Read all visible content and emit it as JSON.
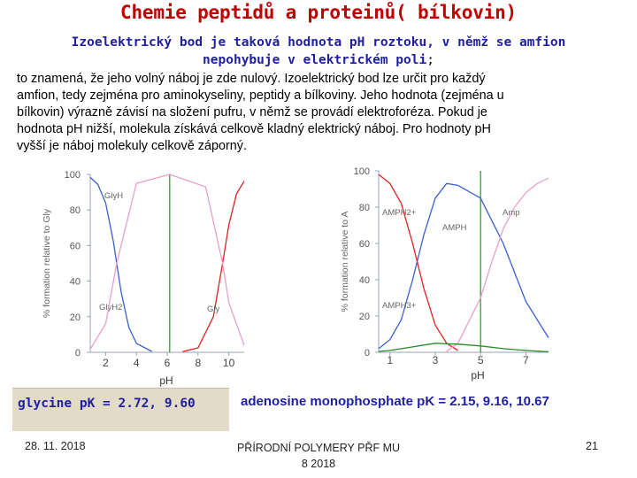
{
  "slide": {
    "title": "Chemie peptidů a proteinů( bílkovin)",
    "subtitle_line1": "Izoelektrický bod je taková hodnota pH roztoku, v němž se amfion",
    "subtitle_line2": "nepohybuje v elektrickém poli",
    "subtitle_semicolon": ";",
    "paragraph_lines": [
      "to znamená, že jeho volný náboj je zde nulový. Izoelektrický bod lze určit pro každý",
      "amfion, tedy zejména pro aminokyseliny, peptidy a bílkoviny. Jeho hodnota (zejména u",
      "bílkovin) výrazně závisí na složení pufru, v němž se provádí elektroforéza. Pokud je",
      "hodnota pH nižší, molekula získává celkově kladný elektrický náboj. Pro hodnoty pH",
      "vyšší je náboj molekuly celkově záporný."
    ],
    "glycine_label": "glycine pK = 2.72, 9.60",
    "amp_label": "adenosine monophosphate pK = 2.15, 9.16, 10.67",
    "highlight_color": "#e2dbc8"
  },
  "footer": {
    "date": "28. 11. 2018",
    "course_line1": "PŘÍRODNÍ POLYMERY PŘF MU",
    "course_line2": "8 2018",
    "page_number": "21"
  },
  "chart_data": [
    {
      "type": "line",
      "title": "",
      "xlabel": "pH",
      "ylabel": "% formation relative to Gly",
      "xlim": [
        1,
        11
      ],
      "ylim": [
        0,
        100
      ],
      "x_ticks": [
        "2",
        "4",
        "6",
        "8",
        "10"
      ],
      "y_ticks": [
        "0",
        "20",
        "40",
        "60",
        "80",
        "100"
      ],
      "pK": [
        2.72,
        9.6
      ],
      "isoelectric_line_x": 6.16,
      "series": [
        {
          "name": "GlyH",
          "color": "#3a5fd0",
          "x": [
            1,
            1.5,
            2,
            2.5,
            2.72,
            3,
            3.5,
            4,
            5
          ],
          "y": [
            98.3,
            94.3,
            84.0,
            62.4,
            50.0,
            34.3,
            14.2,
            5.0,
            0.5
          ]
        },
        {
          "name": "GlyH2",
          "color": "#e02020",
          "x": [
            7,
            8,
            9,
            9.6,
            10,
            10.5,
            11
          ],
          "y": [
            0.4,
            2.5,
            20,
            50,
            71.5,
            89,
            96.2
          ]
        },
        {
          "name": "Gly",
          "color": "#e8a0c8",
          "x": [
            1,
            2,
            2.72,
            4,
            6.16,
            8.5,
            9.6,
            10,
            11
          ],
          "y": [
            1.7,
            16,
            50,
            95,
            100,
            93,
            50,
            28,
            3.8
          ]
        }
      ]
    },
    {
      "type": "line",
      "title": "",
      "xlabel": "pH",
      "ylabel": "% formation relative to A",
      "xlim": [
        0.5,
        8
      ],
      "ylim": [
        0,
        100
      ],
      "x_ticks": [
        "1",
        "3",
        "5",
        "7"
      ],
      "y_ticks": [
        "0",
        "20",
        "40",
        "60",
        "80",
        "100"
      ],
      "pK": [
        2.15,
        9.16,
        10.67
      ],
      "isoelectric_line_x": 5.0,
      "series": [
        {
          "name": "AMPH2+",
          "color": "#e02020",
          "x": [
            0.5,
            1,
            1.5,
            2,
            2.5,
            3,
            3.5,
            4
          ],
          "y": [
            98,
            93,
            82,
            60,
            35,
            15,
            5,
            1
          ]
        },
        {
          "name": "AMPH",
          "color": "#3a5fd0",
          "x": [
            0.5,
            1,
            1.5,
            2,
            2.5,
            3,
            3.5,
            4,
            5,
            6,
            7,
            8
          ],
          "y": [
            2,
            7,
            18,
            40,
            65,
            85,
            93,
            92,
            85,
            60,
            28,
            8
          ]
        },
        {
          "name": "Amp",
          "color": "#e8a0c8",
          "x": [
            3.5,
            4,
            5,
            5.5,
            6,
            6.5,
            7,
            7.5,
            8
          ],
          "y": [
            0.5,
            5,
            30,
            50,
            68,
            80,
            88,
            93,
            96
          ]
        },
        {
          "name": "AMPH3+",
          "color": "#2a8a2a",
          "x": [
            0.5,
            1,
            1.5,
            2,
            2.5,
            3,
            4,
            5,
            6,
            7,
            8
          ],
          "y": [
            0.5,
            1,
            2,
            3,
            4,
            5,
            4.5,
            3.5,
            2,
            1,
            0.3
          ]
        }
      ],
      "series_labels": [
        "AMPH2+",
        "AMPH",
        "Amp",
        "AMPH3+"
      ]
    }
  ]
}
